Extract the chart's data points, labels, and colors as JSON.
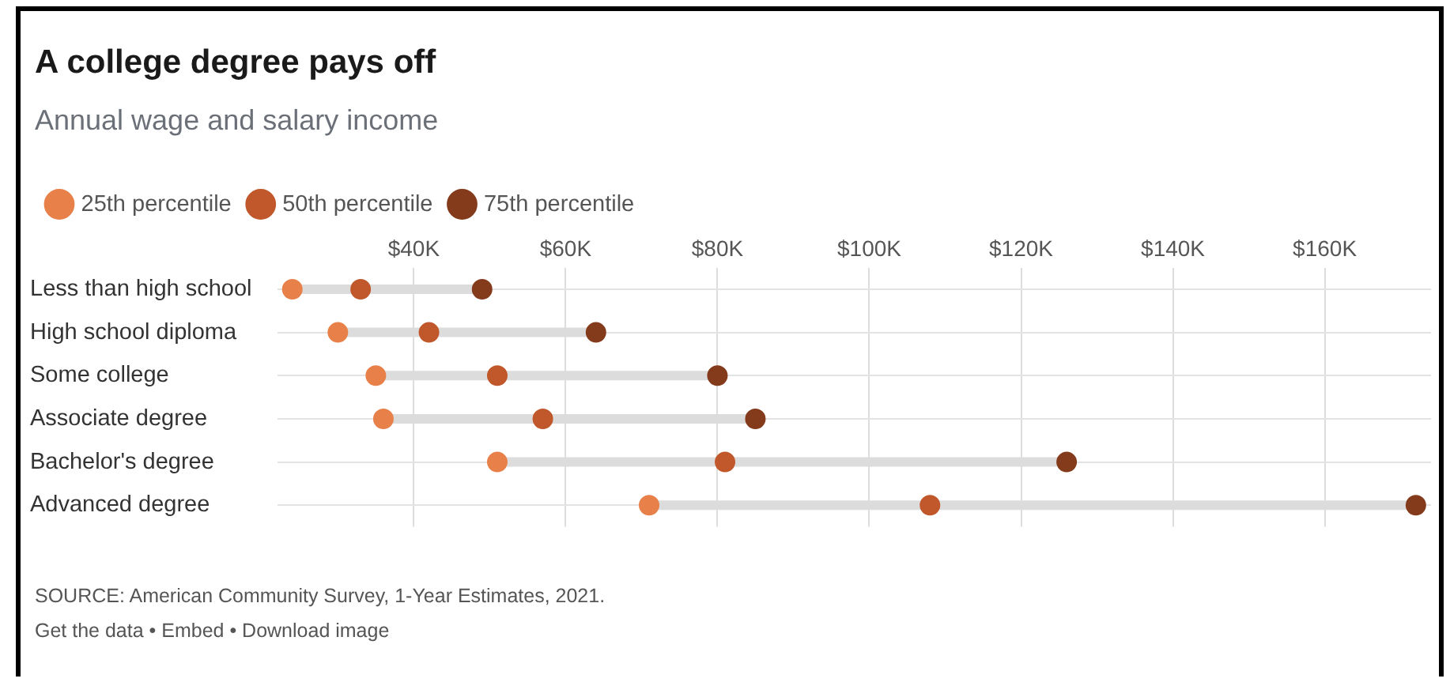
{
  "chart_data": {
    "type": "scatter",
    "title": "A college degree pays off",
    "subtitle": "Annual wage and salary income",
    "categories": [
      "Less than high school",
      "High school diploma",
      "Some college",
      "Associate degree",
      "Bachelor's degree",
      "Advanced degree"
    ],
    "series": [
      {
        "name": "25th percentile",
        "color": "#e8804a",
        "values": [
          24,
          30,
          35,
          36,
          51,
          71
        ]
      },
      {
        "name": "50th percentile",
        "color": "#c0582c",
        "values": [
          33,
          42,
          51,
          57,
          81,
          108
        ]
      },
      {
        "name": "75th percentile",
        "color": "#843b1c",
        "values": [
          49,
          64,
          80,
          85,
          126,
          172
        ]
      }
    ],
    "orientation": "horizontal",
    "xlim": [
      22,
      174
    ],
    "xticks": [
      {
        "value": 40,
        "label": "$40K"
      },
      {
        "value": 60,
        "label": "$60K"
      },
      {
        "value": 80,
        "label": "$80K"
      },
      {
        "value": 100,
        "label": "$100K"
      },
      {
        "value": 120,
        "label": "$120K"
      },
      {
        "value": 140,
        "label": "$140K"
      },
      {
        "value": 160,
        "label": "$160K"
      }
    ],
    "grid": true,
    "legend": "top left",
    "marker": "circle",
    "annotations": [
      "SOURCE: American Community Survey, 1-Year Estimates, 2021.",
      "Get the data • Embed • Download image"
    ]
  }
}
